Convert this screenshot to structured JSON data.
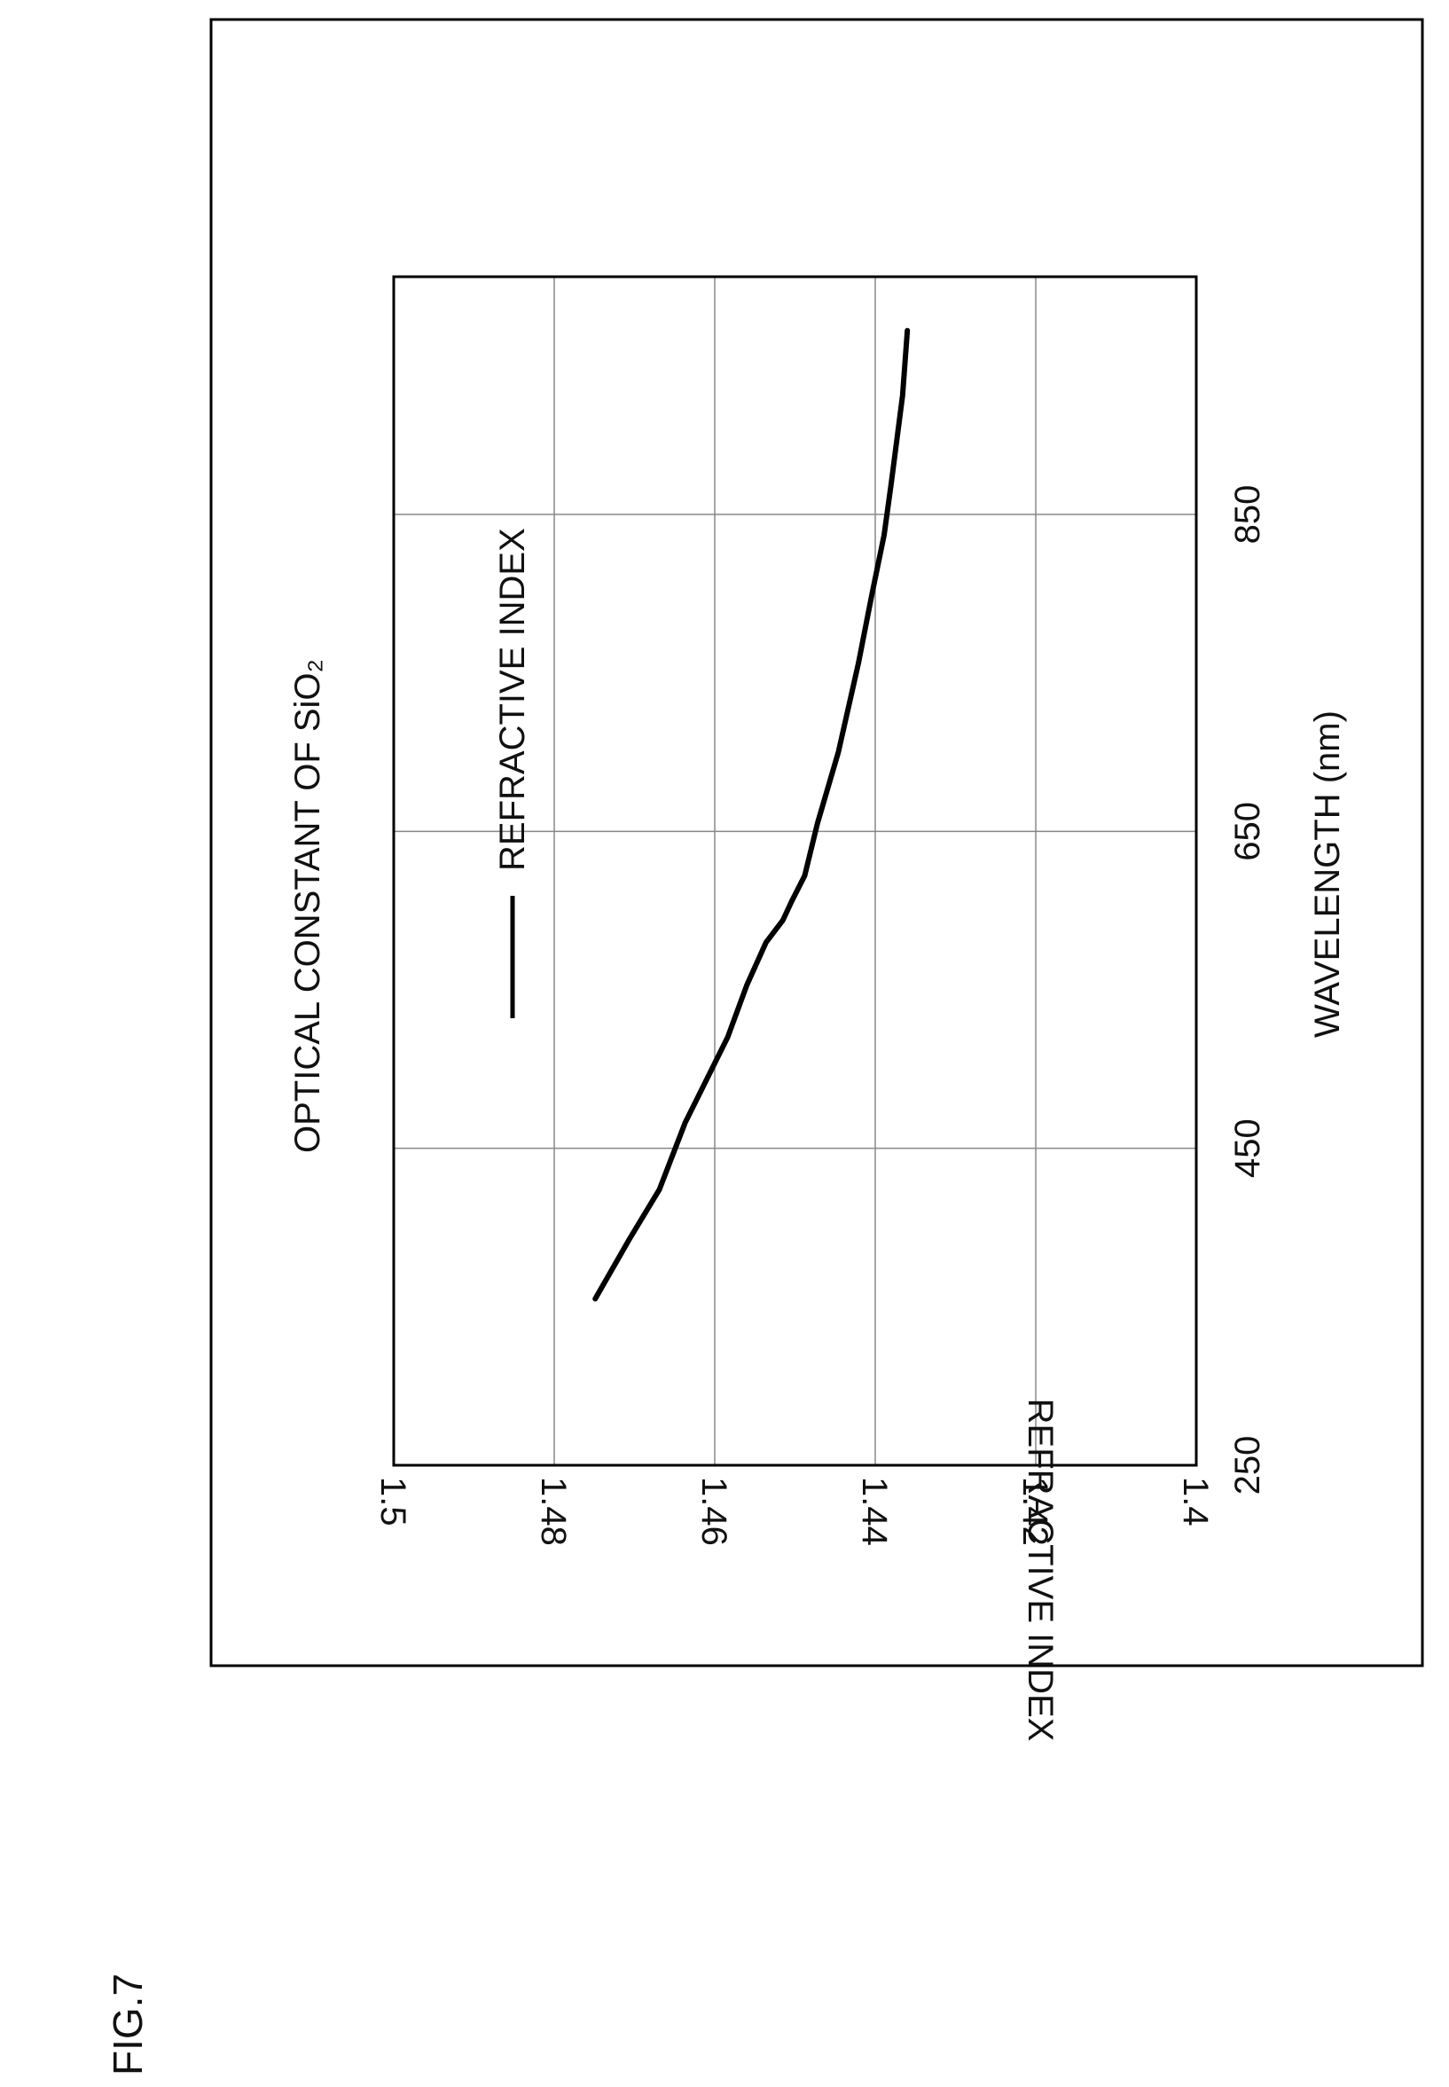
{
  "figure_label": "FIG.7",
  "chart_data": {
    "type": "line",
    "title": "OPTICAL CONSTANT OF SiO₂",
    "xlabel": "WAVELENGTH (nm)",
    "ylabel": "REFRACTIVE INDEX",
    "xlim": [
      250,
      1000
    ],
    "ylim": [
      1.4,
      1.5
    ],
    "x_ticks": [
      250,
      450,
      650,
      850
    ],
    "x_tick_labels": [
      "250",
      "450",
      "650",
      "850"
    ],
    "y_ticks": [
      1.4,
      1.42,
      1.44,
      1.46,
      1.48,
      1.5
    ],
    "y_tick_labels": [
      "1.4",
      "1.42",
      "1.44",
      "1.46",
      "1.48",
      "1.5"
    ],
    "grid": true,
    "legend_position": "upper-left",
    "series": [
      {
        "name": "REFRACTIVE INDEX",
        "x": [
          355,
          393,
          424,
          466,
          520,
          553,
          580,
          594,
          606,
          622,
          655,
          700,
          756,
          800,
          837,
          870,
          925,
          966
        ],
        "y": [
          1.4749,
          1.4706,
          1.4669,
          1.4637,
          1.4584,
          1.456,
          1.4536,
          1.4515,
          1.4504,
          1.4488,
          1.4472,
          1.4446,
          1.4421,
          1.4404,
          1.4389,
          1.438,
          1.4366,
          1.436
        ]
      }
    ],
    "colors": {
      "line": "#000000",
      "grid": "#888888",
      "frame": "#000000"
    }
  }
}
